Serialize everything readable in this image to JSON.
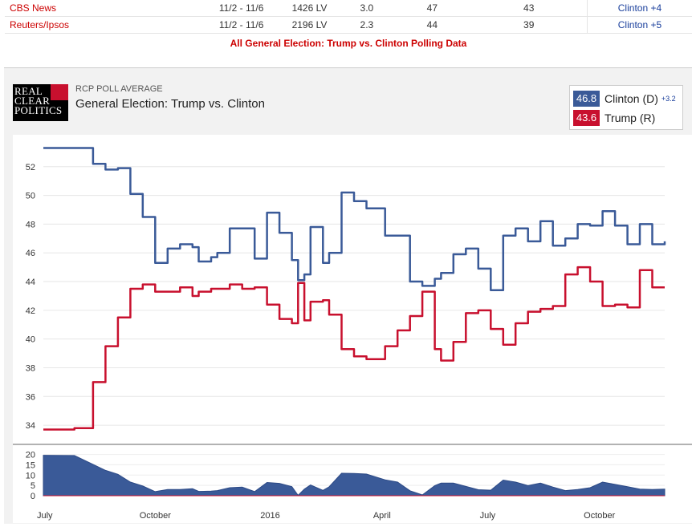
{
  "polls": [
    {
      "pollster": "CBS News",
      "date": "11/2 - 11/6",
      "sample": "1426 LV",
      "moe": "3.0",
      "clinton": "47",
      "trump": "43",
      "spread": "Clinton +4"
    },
    {
      "pollster": "Reuters/Ipsos",
      "date": "11/2 - 11/6",
      "sample": "2196 LV",
      "moe": "2.3",
      "clinton": "44",
      "trump": "39",
      "spread": "Clinton +5"
    }
  ],
  "all_data_link": "All General Election: Trump vs. Clinton Polling Data",
  "logo": {
    "lines": [
      "REAL",
      "CLEAR",
      "POLITICS"
    ]
  },
  "header": {
    "label": "RCP POLL AVERAGE",
    "title": "General Election: Trump vs. Clinton"
  },
  "legend": [
    {
      "value": "46.8",
      "name": "Clinton (D)",
      "delta": "+3.2",
      "color": "#3a5a98"
    },
    {
      "value": "43.6",
      "name": "Trump (R)",
      "delta": "",
      "color": "#c8102e"
    }
  ],
  "chart_data": {
    "type": "line",
    "title": "General Election: Trump vs. Clinton",
    "ylim": [
      33,
      54
    ],
    "yticks": [
      34,
      36,
      38,
      40,
      42,
      44,
      46,
      48,
      50,
      52
    ],
    "x": [
      0,
      5,
      8,
      10,
      12,
      14,
      16,
      18,
      20,
      22,
      24,
      25,
      27,
      28,
      30,
      32,
      34,
      36,
      38,
      40,
      41,
      42,
      43,
      45,
      46,
      48,
      50,
      52,
      55,
      57,
      59,
      61,
      63,
      64,
      66,
      68,
      70,
      72,
      74,
      76,
      78,
      80,
      82,
      84,
      86,
      88,
      90,
      92,
      94,
      96,
      98,
      100
    ],
    "x_ticks": [
      {
        "label": "July",
        "at": 0
      },
      {
        "label": "October",
        "at": 18
      },
      {
        "label": "2016",
        "at": 36.5
      },
      {
        "label": "April",
        "at": 54.5
      },
      {
        "label": "July",
        "at": 71.5
      },
      {
        "label": "October",
        "at": 89.5
      }
    ],
    "series": [
      {
        "name": "Clinton (D)",
        "color": "#3a5a98",
        "values": [
          53.3,
          53.3,
          52.2,
          51.8,
          51.9,
          50.1,
          48.5,
          45.3,
          46.3,
          46.6,
          46.4,
          45.4,
          45.7,
          46.0,
          47.7,
          47.7,
          45.6,
          48.8,
          47.4,
          45.5,
          44.1,
          44.5,
          47.8,
          45.3,
          46.0,
          50.2,
          49.6,
          49.1,
          47.2,
          47.2,
          44.0,
          43.7,
          44.2,
          44.6,
          45.9,
          46.3,
          44.9,
          43.4,
          47.2,
          47.7,
          46.8,
          48.2,
          46.5,
          47.0,
          48.0,
          47.9,
          48.9,
          47.9,
          46.6,
          48.0,
          46.6,
          46.8
        ]
      },
      {
        "name": "Trump (R)",
        "color": "#c8102e",
        "values": [
          33.7,
          33.8,
          37.0,
          39.5,
          41.5,
          43.5,
          43.8,
          43.3,
          43.3,
          43.6,
          43.0,
          43.3,
          43.5,
          43.5,
          43.8,
          43.5,
          43.6,
          42.4,
          41.4,
          41.1,
          43.9,
          41.3,
          42.6,
          42.7,
          41.7,
          39.3,
          38.8,
          38.6,
          39.5,
          40.6,
          41.6,
          43.3,
          39.3,
          38.5,
          39.8,
          41.8,
          42.0,
          40.7,
          39.6,
          41.1,
          41.9,
          42.1,
          42.3,
          44.5,
          45.0,
          44.0,
          42.3,
          42.4,
          42.2,
          44.8,
          43.6,
          43.6
        ]
      }
    ],
    "spread_series": {
      "name": "Spread",
      "yticks": [
        0,
        5,
        10,
        15,
        20
      ],
      "ylim": [
        0,
        21
      ],
      "values": [
        19.6,
        19.5,
        15.2,
        12.3,
        10.4,
        6.6,
        4.7,
        2.0,
        3.0,
        3.0,
        3.4,
        2.1,
        2.2,
        2.5,
        3.9,
        4.2,
        2.0,
        6.4,
        6.0,
        4.4,
        0.2,
        3.2,
        5.2,
        2.6,
        4.3,
        10.9,
        10.8,
        10.5,
        7.7,
        6.6,
        2.4,
        0.4,
        4.9,
        6.1,
        6.1,
        4.5,
        2.9,
        2.7,
        7.6,
        6.6,
        4.9,
        6.1,
        4.2,
        2.5,
        3.0,
        3.9,
        6.6,
        5.5,
        4.4,
        3.2,
        3.0,
        3.2
      ]
    }
  }
}
